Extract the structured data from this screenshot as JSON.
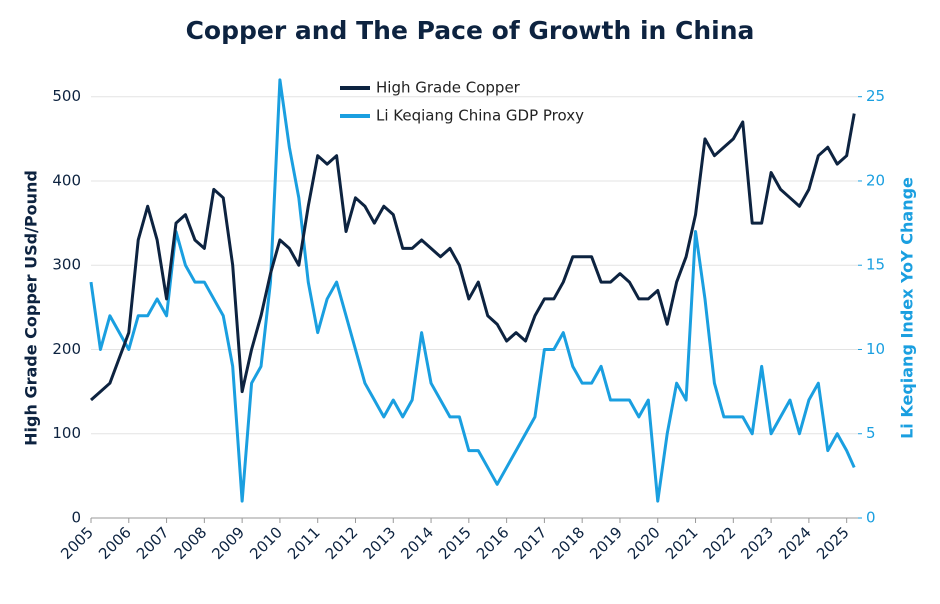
{
  "chart_data": {
    "type": "line",
    "title": "Copper and The Pace of Growth in China",
    "y_label": "High Grade Copper USd/Pound",
    "y2_label": "Li Keqiang Index YoY Change",
    "x": [
      2005,
      2005.25,
      2005.5,
      2005.75,
      2006,
      2006.25,
      2006.5,
      2006.75,
      2007,
      2007.25,
      2007.5,
      2007.75,
      2008,
      2008.25,
      2008.5,
      2008.75,
      2009,
      2009.25,
      2009.5,
      2009.75,
      2010,
      2010.25,
      2010.5,
      2010.75,
      2011,
      2011.25,
      2011.5,
      2011.75,
      2012,
      2012.25,
      2012.5,
      2012.75,
      2013,
      2013.25,
      2013.5,
      2013.75,
      2014,
      2014.25,
      2014.5,
      2014.75,
      2015,
      2015.25,
      2015.5,
      2015.75,
      2016,
      2016.25,
      2016.5,
      2016.75,
      2017,
      2017.25,
      2017.5,
      2017.75,
      2018,
      2018.25,
      2018.5,
      2018.75,
      2019,
      2019.25,
      2019.5,
      2019.75,
      2020,
      2020.25,
      2020.5,
      2020.75,
      2021,
      2021.25,
      2021.5,
      2021.75,
      2022,
      2022.25,
      2022.5,
      2022.75,
      2023,
      2023.25,
      2023.5,
      2023.75,
      2024,
      2024.25,
      2024.5,
      2024.75,
      2025,
      2025.2
    ],
    "series": [
      {
        "name": "High Grade Copper",
        "color": "#0d2340",
        "axis": "y",
        "values": [
          140,
          150,
          160,
          190,
          220,
          330,
          370,
          330,
          260,
          350,
          360,
          330,
          320,
          390,
          380,
          300,
          150,
          200,
          240,
          290,
          330,
          320,
          300,
          370,
          430,
          420,
          430,
          340,
          380,
          370,
          350,
          370,
          360,
          320,
          320,
          330,
          320,
          310,
          320,
          300,
          260,
          280,
          240,
          230,
          210,
          220,
          210,
          240,
          260,
          260,
          280,
          310,
          310,
          310,
          280,
          280,
          290,
          280,
          260,
          260,
          270,
          230,
          280,
          310,
          360,
          450,
          430,
          440,
          450,
          470,
          350,
          350,
          410,
          390,
          380,
          370,
          390,
          430,
          440,
          420,
          430,
          480
        ]
      },
      {
        "name": "Li Keqiang China GDP Proxy",
        "color": "#1a9fe0",
        "axis": "y2",
        "values": [
          14,
          10,
          12,
          11,
          10,
          12,
          12,
          13,
          12,
          17,
          15,
          14,
          14,
          13,
          12,
          9,
          1,
          8,
          9,
          14,
          26,
          22,
          19,
          14,
          11,
          13,
          14,
          12,
          10,
          8,
          7,
          6,
          7,
          6,
          7,
          11,
          8,
          7,
          6,
          6,
          4,
          4,
          3,
          2,
          3,
          4,
          5,
          6,
          10,
          10,
          11,
          9,
          8,
          8,
          9,
          7,
          7,
          7,
          6,
          7,
          1,
          5,
          8,
          7,
          17,
          13,
          8,
          6,
          6,
          6,
          5,
          9,
          5,
          6,
          7,
          5,
          7,
          8,
          4,
          5,
          4,
          3
        ]
      }
    ],
    "xlim": [
      2005,
      2025.3
    ],
    "xticks": [
      2005,
      2006,
      2007,
      2008,
      2009,
      2010,
      2011,
      2012,
      2013,
      2014,
      2015,
      2016,
      2017,
      2018,
      2019,
      2020,
      2021,
      2022,
      2023,
      2024,
      2025
    ],
    "ylim": [
      0,
      540
    ],
    "yticks": [
      0,
      100,
      200,
      300,
      400,
      500
    ],
    "y2lim": [
      0,
      27
    ],
    "y2ticks": [
      0,
      5,
      10,
      15,
      20,
      25
    ],
    "grid": true,
    "legend": "upper center"
  }
}
